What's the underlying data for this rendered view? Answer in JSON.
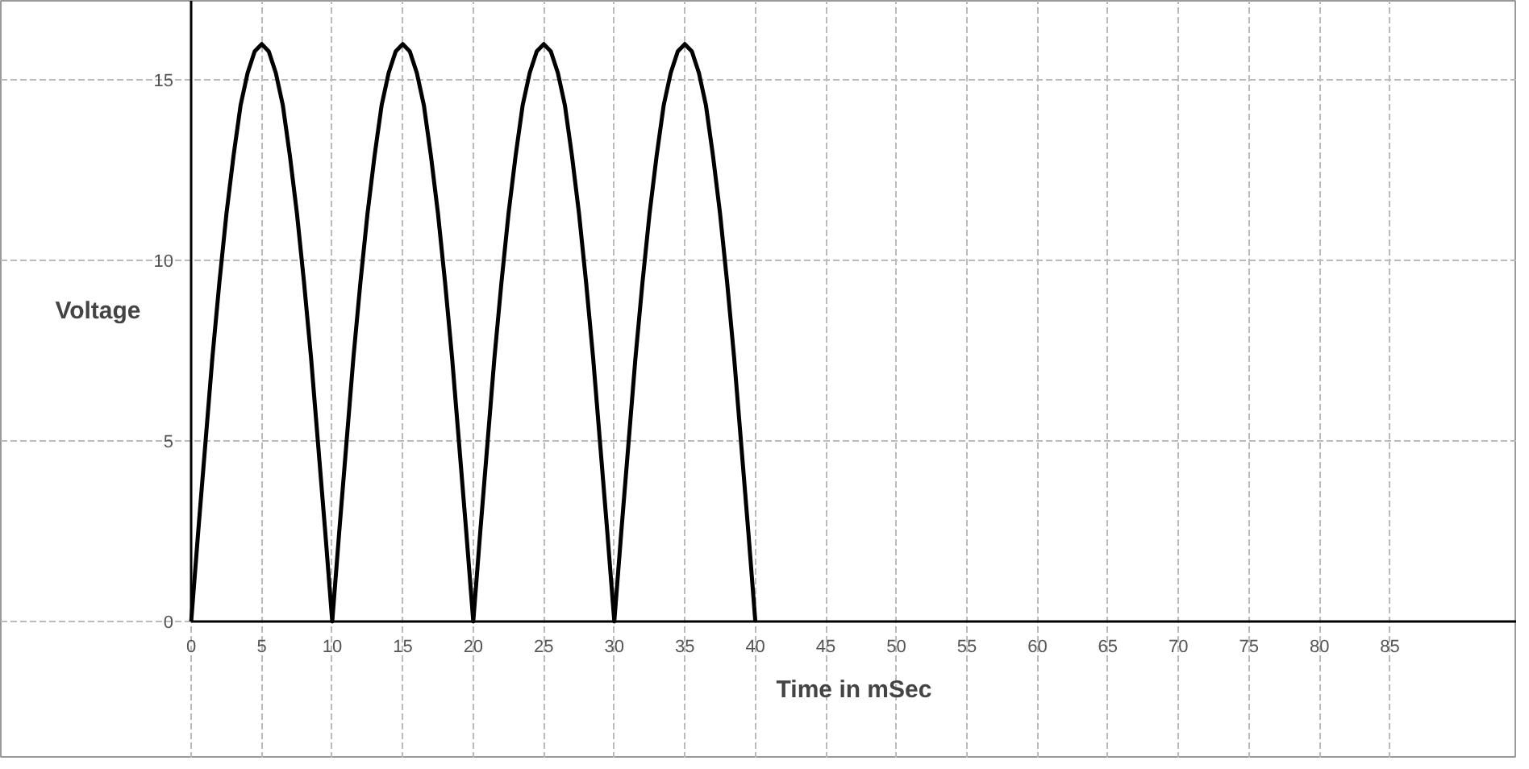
{
  "chart_data": {
    "type": "line",
    "xlabel": "Time in mSec",
    "ylabel": "Voltage",
    "x": [
      0,
      0.5,
      1,
      1.5,
      2,
      2.5,
      3,
      3.5,
      4,
      4.5,
      5,
      5.5,
      6,
      6.5,
      7,
      7.5,
      8,
      8.5,
      9,
      9.5,
      10,
      10.5,
      11,
      11.5,
      12,
      12.5,
      13,
      13.5,
      14,
      14.5,
      15,
      15.5,
      16,
      16.5,
      17,
      17.5,
      18,
      18.5,
      19,
      19.5,
      20,
      20.5,
      21,
      21.5,
      22,
      22.5,
      23,
      23.5,
      24,
      24.5,
      25,
      25.5,
      26,
      26.5,
      27,
      27.5,
      28,
      28.5,
      29,
      29.5,
      30,
      30.5,
      31,
      31.5,
      32,
      32.5,
      33,
      33.5,
      34,
      34.5,
      35,
      35.5,
      36,
      36.5,
      37,
      37.5,
      38,
      38.5,
      39,
      39.5,
      40
    ],
    "series": [
      {
        "color": "#000000",
        "values": [
          0,
          2.5,
          4.9,
          7.3,
          9.4,
          11.3,
          12.9,
          14.3,
          15.2,
          15.8,
          16,
          15.8,
          15.2,
          14.3,
          12.9,
          11.3,
          9.4,
          7.3,
          4.9,
          2.5,
          0,
          2.5,
          4.9,
          7.3,
          9.4,
          11.3,
          12.9,
          14.3,
          15.2,
          15.8,
          16,
          15.8,
          15.2,
          14.3,
          12.9,
          11.3,
          9.4,
          7.3,
          4.9,
          2.5,
          0,
          2.5,
          4.9,
          7.3,
          9.4,
          11.3,
          12.9,
          14.3,
          15.2,
          15.8,
          16,
          15.8,
          15.2,
          14.3,
          12.9,
          11.3,
          9.4,
          7.3,
          4.9,
          2.5,
          0,
          2.5,
          4.9,
          7.3,
          9.4,
          11.3,
          12.9,
          14.3,
          15.2,
          15.8,
          16,
          15.8,
          15.2,
          14.3,
          12.9,
          11.3,
          9.4,
          7.3,
          4.9,
          2.5,
          0
        ]
      }
    ],
    "xlim": [
      -13.5,
      94
    ],
    "ylim": [
      -3.8,
      17.2
    ],
    "xticks": [
      0,
      5,
      10,
      15,
      20,
      25,
      30,
      35,
      40,
      45,
      50,
      55,
      60,
      65,
      70,
      75,
      80,
      85
    ],
    "yticks": [
      0,
      5,
      10,
      15
    ],
    "grid": true,
    "marker": "none",
    "line_style": "solid"
  }
}
